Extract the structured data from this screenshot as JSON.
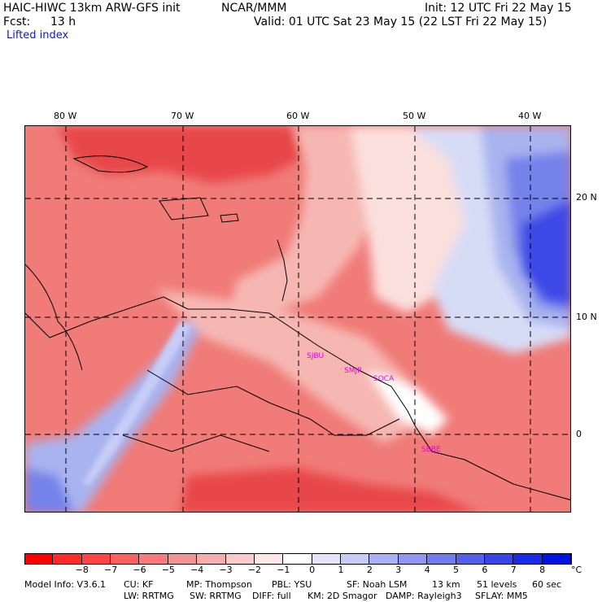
{
  "header": {
    "model_title": "HAIC-HIWC 13km ARW-GFS init",
    "org": "NCAR/MMM",
    "init": "Init: 12 UTC Fri 22 May 15",
    "fcst_label": "Fcst:",
    "fcst_value": "13 h",
    "valid": "Valid: 01 UTC Sat 23 May 15 (22 LST Fri 22 May 15)",
    "field": "Lifted index"
  },
  "map": {
    "lon_labels": [
      "80 W",
      "70 W",
      "60 W",
      "50 W",
      "40 W"
    ],
    "lat_labels": [
      "20 N",
      "10 N",
      "0"
    ],
    "stations": [
      "SJBU",
      "SMJP",
      "SOCA",
      "SBBE"
    ],
    "colors": {
      "deep_red": "#e8474a",
      "mid_red": "#f07b78",
      "light_red": "#f6b7b2",
      "pale": "#fbe0dd",
      "white": "#ffffff",
      "pale_blue": "#d7dcf6",
      "light_blue": "#a9b3ef",
      "mid_blue": "#7482ea",
      "deep_blue": "#3c4ae6"
    }
  },
  "colorbar": {
    "ticks": [
      "−8",
      "−7",
      "−6",
      "−5",
      "−4",
      "−3",
      "−2",
      "−1",
      "0",
      "1",
      "2",
      "3",
      "4",
      "5",
      "6",
      "7",
      "8"
    ],
    "unit": "°C",
    "colors": [
      "#ff0000",
      "#ff2a2a",
      "#ff4545",
      "#fc6060",
      "#f87a7a",
      "#f59393",
      "#f5aeae",
      "#f8caca",
      "#fde8e8",
      "#ffffff",
      "#e2e4fa",
      "#c8cdf7",
      "#aab1f3",
      "#8f97f0",
      "#727ced",
      "#5460ea",
      "#3745e8",
      "#1a2ae6",
      "#0012e3"
    ]
  },
  "footer": {
    "line1_a": "Model Info: V3.6.1",
    "line1_b": "CU: KF",
    "line1_c": "MP: Thompson",
    "line1_d": "PBL: YSU",
    "line1_e": "SF: Noah LSM",
    "line1_f": "13 km",
    "line1_g": "51 levels",
    "line1_h": "60 sec",
    "line2_a": "LW: RRTMG",
    "line2_b": "SW: RRTMG",
    "line2_c": "DIFF: full",
    "line2_d": "KM: 2D Smagor",
    "line2_e": "DAMP: Rayleigh3",
    "line2_f": "SFLAY: MM5"
  }
}
